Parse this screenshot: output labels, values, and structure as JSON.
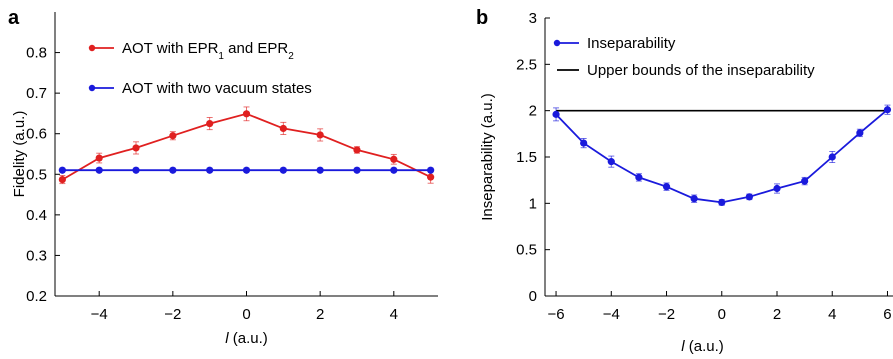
{
  "chart_data": [
    {
      "panel_label": "a",
      "type": "line",
      "xlabel": "l",
      "xlabel_unit": " (a.u.)",
      "ylabel": "Fidelity (a.u.)",
      "xlim": [
        -5.2,
        5.2
      ],
      "ylim": [
        0.2,
        0.9
      ],
      "xticks": [
        -4,
        -2,
        0,
        2,
        4
      ],
      "yticks": [
        0.2,
        0.3,
        0.4,
        0.5,
        0.6,
        0.7,
        0.8
      ],
      "grid": false,
      "legend": "top-left",
      "x": [
        -5,
        -4,
        -3,
        -2,
        -1,
        0,
        1,
        2,
        3,
        4,
        5
      ],
      "series": [
        {
          "name": "AOT with EPR1 and EPR2",
          "legend_text": [
            "AOT with EPR",
            "1",
            " and EPR",
            "2"
          ],
          "color": "#e02020",
          "values": [
            0.487,
            0.54,
            0.565,
            0.595,
            0.625,
            0.649,
            0.613,
            0.597,
            0.56,
            0.537,
            0.493
          ],
          "errors": [
            0.01,
            0.012,
            0.015,
            0.01,
            0.015,
            0.017,
            0.015,
            0.015,
            0.008,
            0.012,
            0.015
          ]
        },
        {
          "name": "AOT with two vacuum states",
          "legend_text": [
            "AOT with two vacuum states"
          ],
          "color": "#1a1adc",
          "values": [
            0.51,
            0.51,
            0.51,
            0.51,
            0.51,
            0.51,
            0.51,
            0.51,
            0.51,
            0.51,
            0.51
          ],
          "errors": [
            0,
            0,
            0,
            0,
            0,
            0,
            0,
            0,
            0,
            0,
            0
          ]
        }
      ]
    },
    {
      "panel_label": "b",
      "type": "line",
      "xlabel": "l",
      "xlabel_unit": " (a.u.)",
      "ylabel": "Inseparability (a.u.)",
      "xlim": [
        -6.4,
        6.2
      ],
      "ylim": [
        0,
        3
      ],
      "xticks": [
        -6,
        -4,
        -2,
        0,
        2,
        4,
        6
      ],
      "yticks": [
        0,
        0.5,
        1,
        1.5,
        2,
        2.5,
        3
      ],
      "grid": false,
      "legend": "top-left",
      "x": [
        -6,
        -5,
        -4,
        -3,
        -2,
        -1,
        0,
        1,
        2,
        3,
        4,
        5,
        6
      ],
      "series": [
        {
          "name": "Inseparability",
          "legend_text": [
            "Inseparability"
          ],
          "color": "#1a1adc",
          "values": [
            1.96,
            1.65,
            1.45,
            1.28,
            1.18,
            1.05,
            1.01,
            1.07,
            1.16,
            1.24,
            1.5,
            1.76,
            2.01
          ],
          "errors": [
            0.07,
            0.05,
            0.06,
            0.04,
            0.04,
            0.04,
            0.03,
            0.03,
            0.05,
            0.04,
            0.06,
            0.04,
            0.05
          ]
        }
      ],
      "reference_lines": [
        {
          "name": "Upper bounds of the inseparability",
          "legend_text": [
            "Upper bounds of the inseparability"
          ],
          "color": "#000000",
          "y": 2,
          "x_from": -6,
          "x_to": 6
        }
      ]
    }
  ]
}
